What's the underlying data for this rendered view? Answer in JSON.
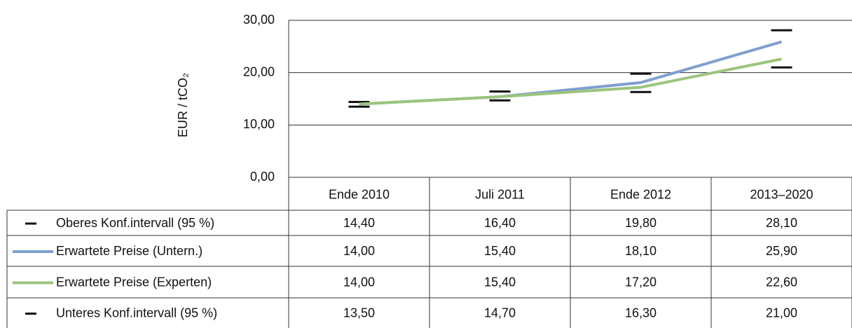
{
  "chart_data": {
    "type": "line",
    "y_label": "EUR / tCO₂",
    "categories": [
      "Ende 2010",
      "Juli 2011",
      "Ende 2012",
      "2013–2020"
    ],
    "ylim": [
      0,
      30
    ],
    "yticks": [
      {
        "value": 0,
        "label": "0,00"
      },
      {
        "value": 10,
        "label": "10,00"
      },
      {
        "value": 20,
        "label": "20,00"
      },
      {
        "value": 30,
        "label": "30,00"
      }
    ],
    "grid": true,
    "series": [
      {
        "name": "Oberes Konf.intervall (95 %)",
        "color": "#111111",
        "style": "marker",
        "values": [
          14.4,
          16.4,
          19.8,
          28.1
        ],
        "value_labels": [
          "14,40",
          "16,40",
          "19,80",
          "28,10"
        ]
      },
      {
        "name": "Erwartete Preise (Untern.)",
        "color": "#7f9fcf",
        "style": "line",
        "values": [
          14.0,
          15.4,
          18.1,
          25.9
        ],
        "value_labels": [
          "14,00",
          "15,40",
          "18,10",
          "25,90"
        ]
      },
      {
        "name": "Erwartete Preise (Experten)",
        "color": "#9cc47c",
        "style": "line",
        "values": [
          14.0,
          15.4,
          17.2,
          22.6
        ],
        "value_labels": [
          "14,00",
          "15,40",
          "17,20",
          "22,60"
        ]
      },
      {
        "name": "Unteres Konf.intervall (95 %)",
        "color": "#111111",
        "style": "marker",
        "values": [
          13.5,
          14.7,
          16.3,
          21.0
        ],
        "value_labels": [
          "13,50",
          "14,70",
          "16,30",
          "21,00"
        ]
      }
    ]
  }
}
